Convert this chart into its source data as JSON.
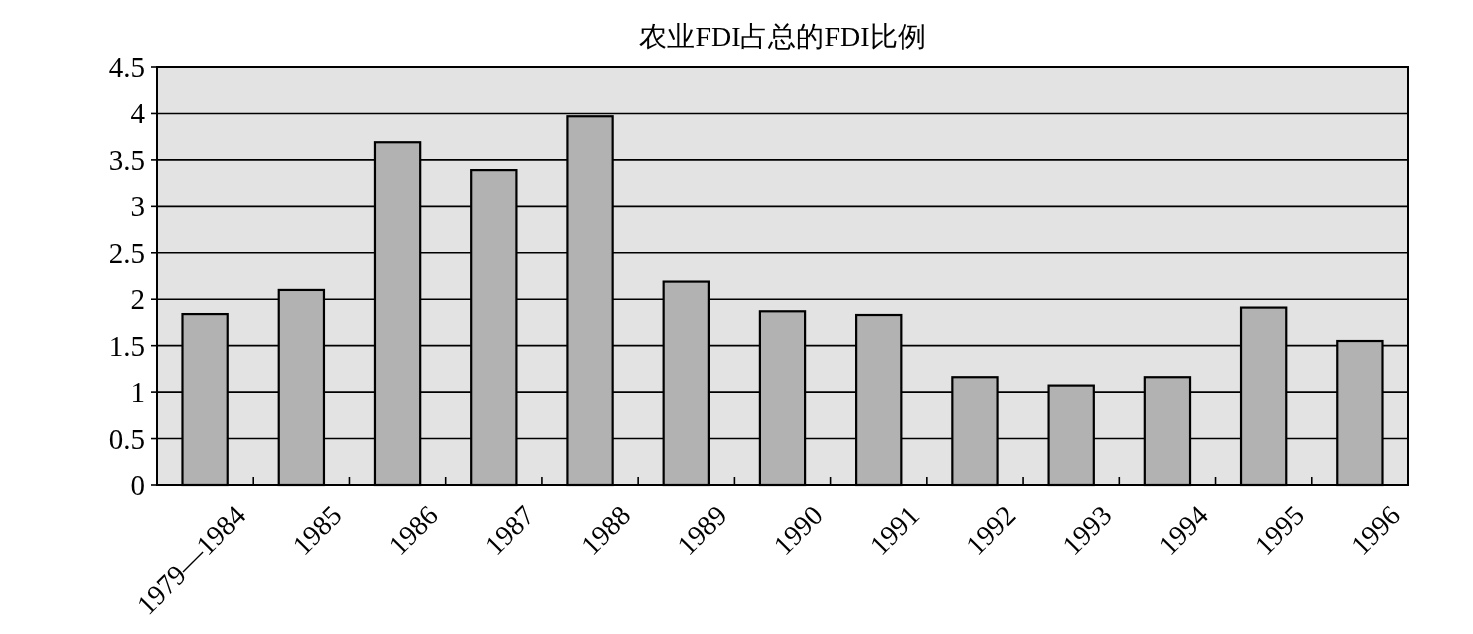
{
  "chart_data": {
    "type": "bar",
    "title": "农业FDI占总的FDI比例",
    "categories": [
      "1979—1984",
      "1985",
      "1986",
      "1987",
      "1988",
      "1989",
      "1990",
      "1991",
      "1992",
      "1993",
      "1994",
      "1995",
      "1996"
    ],
    "values": [
      1.84,
      2.1,
      3.69,
      3.39,
      3.97,
      2.19,
      1.87,
      1.83,
      1.16,
      1.07,
      1.16,
      1.91,
      1.55
    ],
    "color": "#b2b2b2",
    "ylim": [
      0,
      4.5
    ],
    "yticks": [
      0,
      0.5,
      1,
      1.5,
      2,
      2.5,
      3,
      3.5,
      4,
      4.5
    ],
    "grid": "y"
  }
}
